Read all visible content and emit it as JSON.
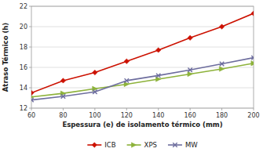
{
  "chart_data": {
    "type": "line",
    "xlabel": "Espessura (e) de isolamento térmico (mm)",
    "ylabel": "Atraso Térmico (h)",
    "x": [
      60,
      80,
      100,
      120,
      140,
      160,
      180,
      200
    ],
    "series": [
      {
        "name": "ICB",
        "color": "#cc1100",
        "marker": "diamond",
        "line_style": "solid",
        "values": [
          13.5,
          14.7,
          15.5,
          16.6,
          17.7,
          18.9,
          20.0,
          21.3
        ]
      },
      {
        "name": "XPS",
        "color": "#8db23a",
        "marker": "triangle-right",
        "line_style": "solid",
        "values": [
          13.1,
          13.45,
          13.9,
          14.35,
          14.85,
          15.35,
          15.85,
          16.4
        ]
      },
      {
        "name": "MW",
        "color": "#6d6d9e",
        "marker": "x",
        "line_style": "solid",
        "values": [
          12.8,
          13.15,
          13.6,
          14.7,
          15.2,
          15.75,
          16.35,
          16.95
        ]
      }
    ],
    "xlim": [
      60,
      200
    ],
    "ylim": [
      12,
      22
    ],
    "xticks": [
      60,
      80,
      100,
      120,
      140,
      160,
      180,
      200
    ],
    "yticks": [
      12,
      14,
      16,
      18,
      20,
      22
    ],
    "grid": true,
    "legend": "bottom"
  }
}
